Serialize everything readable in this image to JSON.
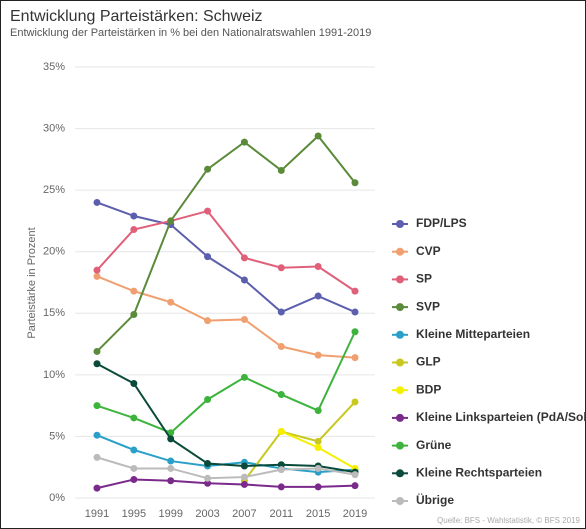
{
  "chart_data": {
    "type": "line",
    "title": "Entwicklung Parteistärken: Schweiz",
    "subtitle": "Entwicklung der Parteistärken in % bei den Nationalratswahlen 1991-2019",
    "y_label": "Parteistärke in Prozent",
    "source": "Quelle: BFS - Wahlstatistik, © BFS 2019",
    "categories": [
      "1991",
      "1995",
      "1999",
      "2003",
      "2007",
      "2011",
      "2015",
      "2019"
    ],
    "ylim": [
      0,
      35
    ],
    "yticks": [
      {
        "value": 0,
        "label": "0%"
      },
      {
        "value": 5,
        "label": "5%"
      },
      {
        "value": 10,
        "label": "10%"
      },
      {
        "value": 15,
        "label": "15%"
      },
      {
        "value": 20,
        "label": "20%"
      },
      {
        "value": 25,
        "label": "25%"
      },
      {
        "value": 30,
        "label": "30%"
      },
      {
        "value": 35,
        "label": "35%"
      }
    ],
    "grid": true,
    "legend": "right",
    "series": [
      {
        "name": "FDP/LPS",
        "color": "#5b5fae",
        "values": [
          24.0,
          22.9,
          22.2,
          19.6,
          17.7,
          15.1,
          16.4,
          15.1
        ]
      },
      {
        "name": "CVP",
        "color": "#f0a070",
        "values": [
          18.0,
          16.8,
          15.9,
          14.4,
          14.5,
          12.3,
          11.6,
          11.4
        ]
      },
      {
        "name": "SP",
        "color": "#e0607a",
        "values": [
          18.5,
          21.8,
          22.5,
          23.3,
          19.5,
          18.7,
          18.8,
          16.8
        ]
      },
      {
        "name": "SVP",
        "color": "#5a8a3a",
        "values": [
          11.9,
          14.9,
          22.5,
          26.7,
          28.9,
          26.6,
          29.4,
          25.6
        ]
      },
      {
        "name": "Kleine Mitteparteien",
        "color": "#2aa0c8",
        "values": [
          5.1,
          3.9,
          3.0,
          2.6,
          2.9,
          2.4,
          2.1,
          2.3
        ]
      },
      {
        "name": "GLP",
        "color": "#c8c820",
        "values": [
          null,
          null,
          null,
          null,
          1.4,
          5.4,
          4.6,
          7.8
        ]
      },
      {
        "name": "BDP",
        "color": "#f5f000",
        "values": [
          null,
          null,
          null,
          null,
          null,
          5.4,
          4.1,
          2.4
        ]
      },
      {
        "name": "Kleine Linksparteien (PdA/Sol.",
        "color": "#7a2a8a",
        "values": [
          0.8,
          1.5,
          1.4,
          1.2,
          1.1,
          0.9,
          0.9,
          1.0
        ]
      },
      {
        "name": "Grüne",
        "color": "#3cb43c",
        "values": [
          7.5,
          6.5,
          5.3,
          8.0,
          9.8,
          8.4,
          7.1,
          13.5
        ]
      },
      {
        "name": "Kleine Rechtsparteien",
        "color": "#0a4a3a",
        "values": [
          10.9,
          9.3,
          4.8,
          2.8,
          2.6,
          2.7,
          2.6,
          2.1
        ]
      },
      {
        "name": "Übrige",
        "color": "#bbbbbb",
        "values": [
          3.3,
          2.4,
          2.4,
          1.6,
          1.7,
          2.3,
          2.4,
          1.9
        ]
      }
    ]
  }
}
